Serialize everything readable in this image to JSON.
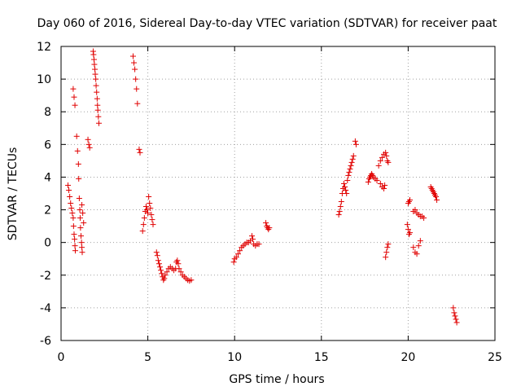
{
  "chart_data": {
    "type": "scatter",
    "title": "Day 060 of 2016, Sidereal Day-to-day VTEC variation (SDTVAR) for receiver paat",
    "xlabel": "GPS time / hours",
    "ylabel": "SDTVAR / TECUs",
    "xlim": [
      0,
      25
    ],
    "ylim": [
      -6,
      12
    ],
    "xticks": [
      0,
      5,
      10,
      15,
      20,
      25
    ],
    "yticks": [
      -6,
      -4,
      -2,
      0,
      2,
      4,
      6,
      8,
      10,
      12
    ],
    "grid": true,
    "marker": "+",
    "series": [
      {
        "name": "SDTVAR",
        "color": "#e00000",
        "segments": [
          [
            [
              0.4,
              3.5
            ],
            [
              0.45,
              3.2
            ],
            [
              0.5,
              2.8
            ],
            [
              0.55,
              2.4
            ],
            [
              0.6,
              2.1
            ],
            [
              0.65,
              1.8
            ],
            [
              0.7,
              1.5
            ],
            [
              0.72,
              1.0
            ],
            [
              0.75,
              0.5
            ],
            [
              0.78,
              0.2
            ],
            [
              0.8,
              -0.2
            ],
            [
              0.82,
              -0.5
            ]
          ],
          [
            [
              0.7,
              9.4
            ],
            [
              0.75,
              8.9
            ],
            [
              0.8,
              8.4
            ]
          ],
          [
            [
              0.9,
              6.5
            ],
            [
              0.95,
              5.6
            ],
            [
              1.0,
              4.8
            ],
            [
              1.02,
              3.9
            ],
            [
              1.05,
              2.7
            ],
            [
              1.08,
              2.0
            ],
            [
              1.1,
              1.5
            ],
            [
              1.12,
              0.9
            ],
            [
              1.15,
              0.4
            ],
            [
              1.18,
              0.0
            ],
            [
              1.2,
              -0.3
            ],
            [
              1.22,
              -0.6
            ]
          ],
          [
            [
              1.2,
              2.3
            ],
            [
              1.25,
              1.8
            ],
            [
              1.3,
              1.2
            ]
          ],
          [
            [
              1.55,
              6.3
            ],
            [
              1.6,
              6.0
            ],
            [
              1.65,
              5.8
            ]
          ],
          [
            [
              1.85,
              11.7
            ],
            [
              1.87,
              11.5
            ],
            [
              1.9,
              11.2
            ],
            [
              1.92,
              10.9
            ],
            [
              1.95,
              10.6
            ],
            [
              1.97,
              10.3
            ],
            [
              2.0,
              10.0
            ],
            [
              2.02,
              9.6
            ],
            [
              2.05,
              9.2
            ],
            [
              2.08,
              8.8
            ],
            [
              2.1,
              8.4
            ],
            [
              2.12,
              8.1
            ],
            [
              2.15,
              7.7
            ],
            [
              2.18,
              7.3
            ]
          ],
          [
            [
              4.15,
              11.4
            ],
            [
              4.2,
              11.0
            ],
            [
              4.25,
              10.6
            ],
            [
              4.3,
              10.0
            ],
            [
              4.35,
              9.4
            ],
            [
              4.4,
              8.5
            ]
          ],
          [
            [
              4.5,
              5.7
            ],
            [
              4.55,
              5.5
            ]
          ],
          [
            [
              4.7,
              0.7
            ],
            [
              4.75,
              1.1
            ],
            [
              4.8,
              1.5
            ],
            [
              4.85,
              1.9
            ],
            [
              4.9,
              2.2
            ],
            [
              4.95,
              2.0
            ],
            [
              5.0,
              1.8
            ],
            [
              5.05,
              2.8
            ],
            [
              5.1,
              2.4
            ],
            [
              5.15,
              2.1
            ],
            [
              5.2,
              1.7
            ],
            [
              5.25,
              1.4
            ],
            [
              5.3,
              1.1
            ]
          ],
          [
            [
              5.5,
              -0.6
            ],
            [
              5.55,
              -0.8
            ],
            [
              5.6,
              -1.1
            ],
            [
              5.65,
              -1.3
            ],
            [
              5.7,
              -1.5
            ],
            [
              5.75,
              -1.7
            ],
            [
              5.8,
              -1.9
            ],
            [
              5.85,
              -2.1
            ],
            [
              5.9,
              -2.3
            ],
            [
              5.95,
              -2.2
            ],
            [
              6.0,
              -2.0
            ],
            [
              6.1,
              -1.8
            ],
            [
              6.2,
              -1.6
            ],
            [
              6.3,
              -1.5
            ],
            [
              6.4,
              -1.6
            ],
            [
              6.5,
              -1.7
            ],
            [
              6.6,
              -1.6
            ],
            [
              6.65,
              -1.2
            ],
            [
              6.7,
              -1.1
            ],
            [
              6.75,
              -1.3
            ],
            [
              6.8,
              -1.6
            ],
            [
              6.9,
              -1.8
            ],
            [
              7.0,
              -2.0
            ],
            [
              7.1,
              -2.1
            ],
            [
              7.2,
              -2.2
            ],
            [
              7.3,
              -2.3
            ],
            [
              7.4,
              -2.35
            ],
            [
              7.5,
              -2.3
            ]
          ],
          [
            [
              9.95,
              -1.2
            ],
            [
              10.0,
              -1.0
            ],
            [
              10.1,
              -0.9
            ],
            [
              10.2,
              -0.7
            ],
            [
              10.3,
              -0.5
            ],
            [
              10.4,
              -0.3
            ],
            [
              10.5,
              -0.2
            ],
            [
              10.6,
              -0.1
            ],
            [
              10.7,
              0.0
            ],
            [
              10.8,
              0.0
            ],
            [
              10.9,
              0.1
            ],
            [
              11.0,
              0.4
            ],
            [
              11.05,
              0.2
            ],
            [
              11.1,
              -0.1
            ],
            [
              11.2,
              -0.2
            ],
            [
              11.3,
              -0.1
            ],
            [
              11.4,
              -0.1
            ]
          ],
          [
            [
              11.8,
              1.2
            ],
            [
              11.85,
              1.0
            ],
            [
              11.9,
              0.9
            ],
            [
              11.95,
              0.8
            ],
            [
              12.0,
              0.9
            ]
          ],
          [
            [
              16.0,
              1.7
            ],
            [
              16.05,
              1.9
            ],
            [
              16.1,
              2.2
            ],
            [
              16.15,
              2.5
            ],
            [
              16.2,
              3.0
            ],
            [
              16.25,
              3.3
            ],
            [
              16.3,
              3.6
            ],
            [
              16.35,
              3.4
            ],
            [
              16.4,
              3.2
            ],
            [
              16.45,
              3.0
            ],
            [
              16.5,
              3.8
            ],
            [
              16.55,
              4.1
            ],
            [
              16.6,
              4.3
            ],
            [
              16.65,
              4.5
            ],
            [
              16.7,
              4.7
            ],
            [
              16.75,
              4.9
            ],
            [
              16.8,
              5.1
            ],
            [
              16.85,
              5.3
            ]
          ],
          [
            [
              16.95,
              6.2
            ],
            [
              17.0,
              6.0
            ]
          ],
          [
            [
              17.7,
              3.7
            ],
            [
              17.75,
              3.9
            ],
            [
              17.8,
              4.0
            ],
            [
              17.85,
              4.1
            ],
            [
              17.9,
              4.2
            ],
            [
              17.95,
              4.1
            ],
            [
              18.0,
              4.0
            ],
            [
              18.1,
              3.9
            ],
            [
              18.2,
              3.8
            ],
            [
              18.3,
              4.7
            ],
            [
              18.4,
              5.0
            ],
            [
              18.5,
              5.2
            ],
            [
              18.6,
              5.4
            ],
            [
              18.7,
              5.5
            ],
            [
              18.75,
              5.3
            ],
            [
              18.8,
              5.0
            ],
            [
              18.85,
              4.9
            ]
          ],
          [
            [
              18.4,
              3.6
            ],
            [
              18.5,
              3.4
            ],
            [
              18.6,
              3.3
            ],
            [
              18.65,
              3.5
            ]
          ],
          [
            [
              18.7,
              -0.9
            ],
            [
              18.75,
              -0.6
            ],
            [
              18.8,
              -0.3
            ],
            [
              18.85,
              -0.1
            ]
          ],
          [
            [
              19.95,
              1.1
            ],
            [
              20.0,
              0.8
            ],
            [
              20.05,
              0.5
            ],
            [
              20.1,
              0.6
            ],
            [
              20.0,
              2.4
            ],
            [
              20.05,
              2.5
            ],
            [
              20.1,
              2.6
            ]
          ],
          [
            [
              20.3,
              -0.3
            ],
            [
              20.4,
              -0.6
            ],
            [
              20.5,
              -0.7
            ],
            [
              20.6,
              -0.2
            ],
            [
              20.7,
              0.1
            ]
          ],
          [
            [
              20.3,
              1.9
            ],
            [
              20.4,
              2.0
            ],
            [
              20.5,
              1.8
            ],
            [
              20.6,
              1.7
            ],
            [
              20.7,
              1.6
            ],
            [
              20.8,
              1.6
            ],
            [
              20.9,
              1.5
            ]
          ],
          [
            [
              21.3,
              3.4
            ],
            [
              21.35,
              3.3
            ],
            [
              21.4,
              3.2
            ],
            [
              21.45,
              3.1
            ],
            [
              21.5,
              3.0
            ],
            [
              21.55,
              2.9
            ],
            [
              21.6,
              2.8
            ],
            [
              21.65,
              2.6
            ]
          ],
          [
            [
              22.6,
              -4.0
            ],
            [
              22.65,
              -4.3
            ],
            [
              22.7,
              -4.5
            ],
            [
              22.75,
              -4.7
            ],
            [
              22.8,
              -4.9
            ]
          ]
        ]
      }
    ]
  }
}
